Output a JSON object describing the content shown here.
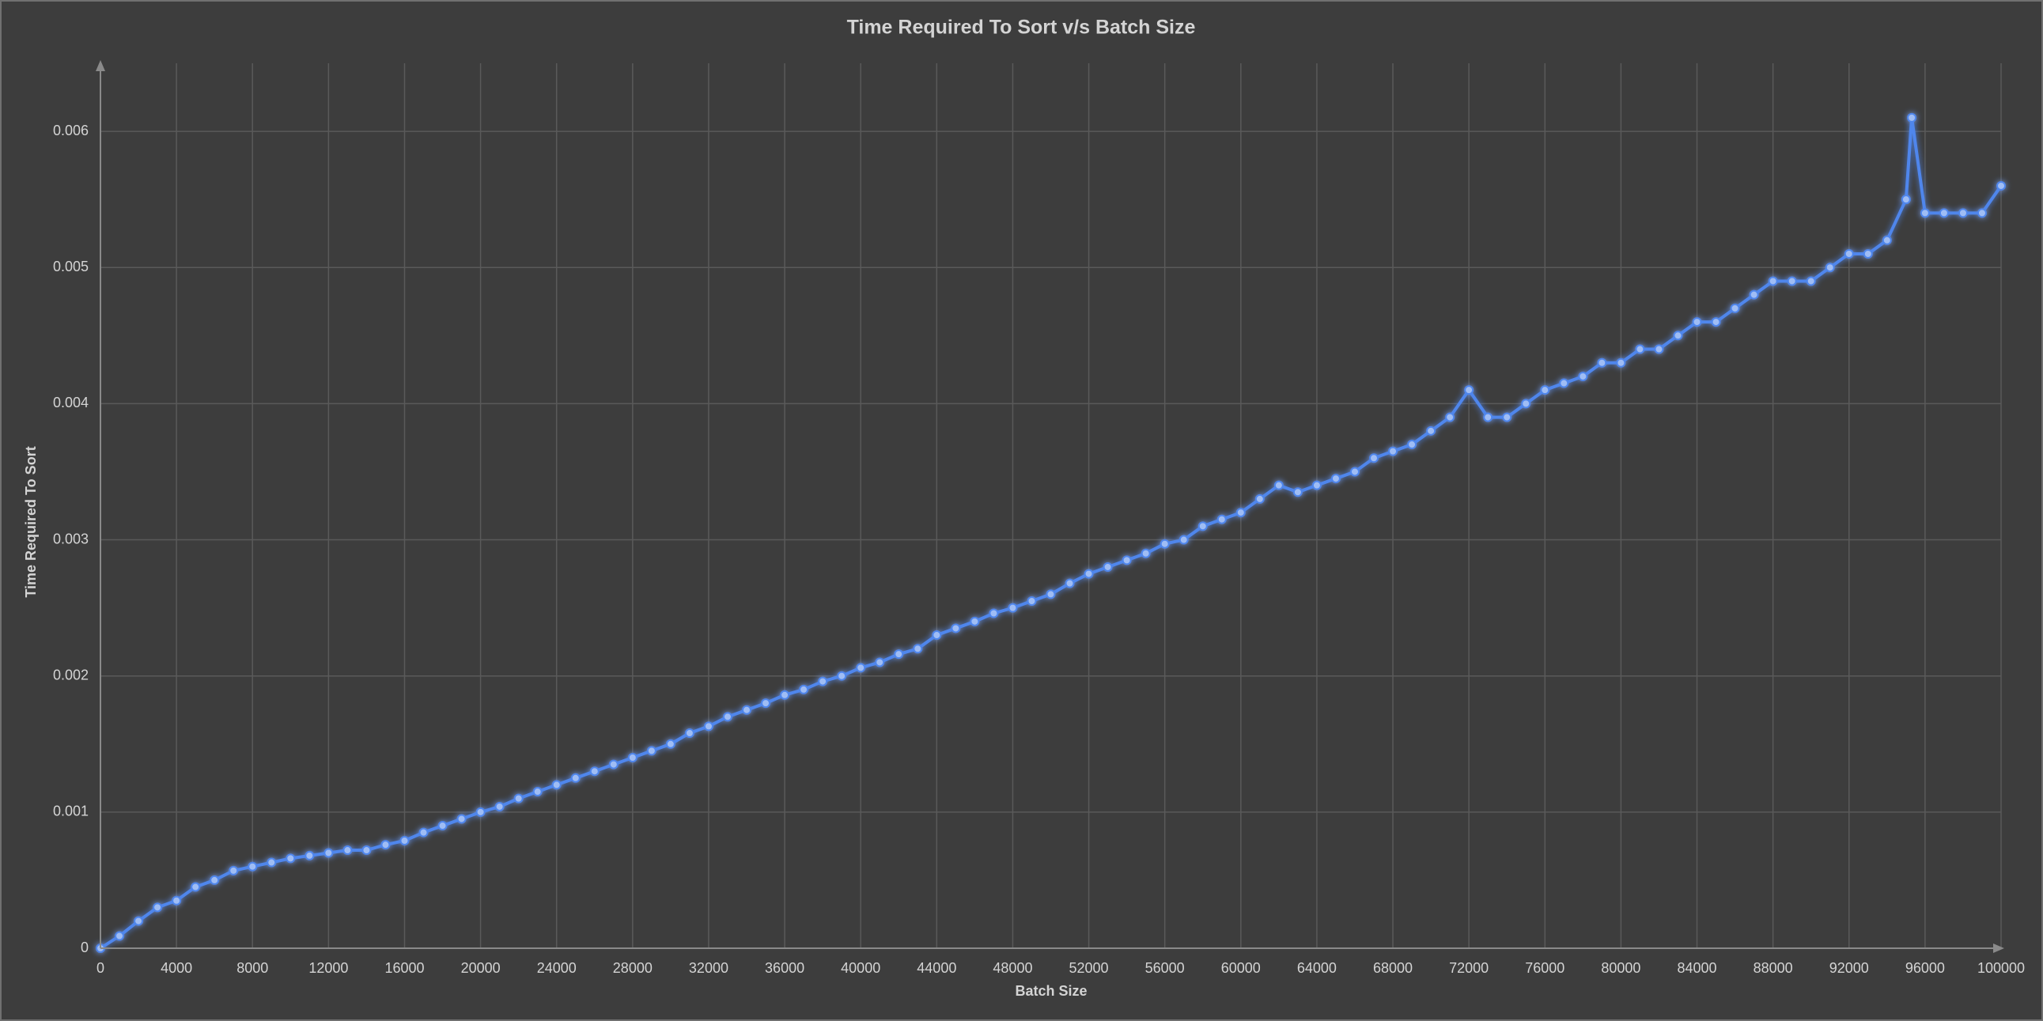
{
  "chart_data": {
    "type": "line",
    "title": "Time Required To Sort v/s Batch Size",
    "x_label": "Batch Size",
    "y_label": "Time Required To Sort",
    "x": [
      0,
      1000,
      2000,
      3000,
      4000,
      5000,
      6000,
      7000,
      8000,
      9000,
      10000,
      11000,
      12000,
      13000,
      14000,
      15000,
      16000,
      17000,
      18000,
      19000,
      20000,
      21000,
      22000,
      23000,
      24000,
      25000,
      26000,
      27000,
      28000,
      29000,
      30000,
      31000,
      32000,
      33000,
      34000,
      35000,
      36000,
      37000,
      38000,
      39000,
      40000,
      41000,
      42000,
      43000,
      44000,
      45000,
      46000,
      47000,
      48000,
      49000,
      50000,
      51000,
      52000,
      53000,
      54000,
      55000,
      56000,
      57000,
      58000,
      59000,
      60000,
      61000,
      62000,
      63000,
      64000,
      65000,
      66000,
      67000,
      68000,
      69000,
      70000,
      71000,
      72000,
      73000,
      74000,
      75000,
      76000,
      77000,
      78000,
      79000,
      80000,
      81000,
      82000,
      83000,
      84000,
      85000,
      86000,
      87000,
      88000,
      89000,
      90000,
      91000,
      92000,
      93000,
      94000,
      95000,
      95300,
      96000,
      97000,
      98000,
      99000,
      100000
    ],
    "values": [
      0,
      9e-05,
      0.0002,
      0.0003,
      0.00035,
      0.00045,
      0.0005,
      0.00057,
      0.0006,
      0.00063,
      0.00066,
      0.00068,
      0.0007,
      0.00072,
      0.00072,
      0.00076,
      0.00079,
      0.00085,
      0.0009,
      0.00095,
      0.001,
      0.00104,
      0.0011,
      0.00115,
      0.0012,
      0.00125,
      0.0013,
      0.00135,
      0.0014,
      0.00145,
      0.0015,
      0.00158,
      0.00163,
      0.0017,
      0.00175,
      0.0018,
      0.00186,
      0.0019,
      0.00196,
      0.002,
      0.00206,
      0.0021,
      0.00216,
      0.0022,
      0.0023,
      0.00235,
      0.0024,
      0.00246,
      0.0025,
      0.00255,
      0.0026,
      0.00268,
      0.00275,
      0.0028,
      0.00285,
      0.0029,
      0.00297,
      0.003,
      0.0031,
      0.00315,
      0.0032,
      0.0033,
      0.0034,
      0.00335,
      0.0034,
      0.00345,
      0.0035,
      0.0036,
      0.00365,
      0.0037,
      0.0038,
      0.0039,
      0.0041,
      0.0039,
      0.0039,
      0.004,
      0.0041,
      0.00415,
      0.0042,
      0.0043,
      0.0043,
      0.0044,
      0.0044,
      0.0045,
      0.0046,
      0.0046,
      0.0047,
      0.0048,
      0.0049,
      0.0049,
      0.0049,
      0.005,
      0.0051,
      0.0051,
      0.0052,
      0.0055,
      0.0061,
      0.0054,
      0.0054,
      0.0054,
      0.0054,
      0.0056
    ],
    "color": "#4f86ec",
    "xlim": [
      0,
      100000
    ],
    "ylim": [
      0,
      0.0065
    ],
    "xticks": [
      0,
      4000,
      8000,
      12000,
      16000,
      20000,
      24000,
      28000,
      32000,
      36000,
      40000,
      44000,
      48000,
      52000,
      56000,
      60000,
      64000,
      68000,
      72000,
      76000,
      80000,
      84000,
      88000,
      92000,
      96000,
      100000
    ],
    "yticks": [
      0,
      0.001,
      0.002,
      0.003,
      0.004,
      0.005,
      0.006
    ],
    "grid": true
  }
}
